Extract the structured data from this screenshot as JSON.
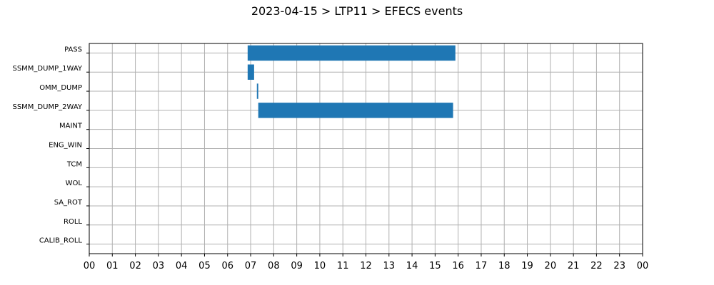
{
  "chart_data": {
    "type": "bar",
    "orientation": "horizontal-timeline",
    "title": "2023-04-15 > LTP11 > EFECS events",
    "xlabel": "",
    "ylabel": "",
    "xlim_hours": [
      0,
      24
    ],
    "x_tick_labels": [
      "00",
      "01",
      "02",
      "03",
      "04",
      "05",
      "06",
      "07",
      "08",
      "09",
      "10",
      "11",
      "12",
      "13",
      "14",
      "15",
      "16",
      "17",
      "18",
      "19",
      "20",
      "21",
      "22",
      "23",
      "00"
    ],
    "categories": [
      "PASS",
      "SSMM_DUMP_1WAY",
      "OMM_DUMP",
      "SSMM_DUMP_2WAY",
      "MAINT",
      "ENG_WIN",
      "TCM",
      "WOL",
      "SA_ROT",
      "ROLL",
      "CALIB_ROLL"
    ],
    "events": [
      {
        "category": "PASS",
        "start_hour": 6.87,
        "end_hour": 15.88
      },
      {
        "category": "SSMM_DUMP_1WAY",
        "start_hour": 6.87,
        "end_hour": 7.15
      },
      {
        "category": "OMM_DUMP",
        "start_hour": 7.27,
        "end_hour": 7.33
      },
      {
        "category": "SSMM_DUMP_2WAY",
        "start_hour": 7.33,
        "end_hour": 15.78
      }
    ],
    "bar_color": "#1f77b4",
    "grid": true,
    "legend": "none"
  }
}
